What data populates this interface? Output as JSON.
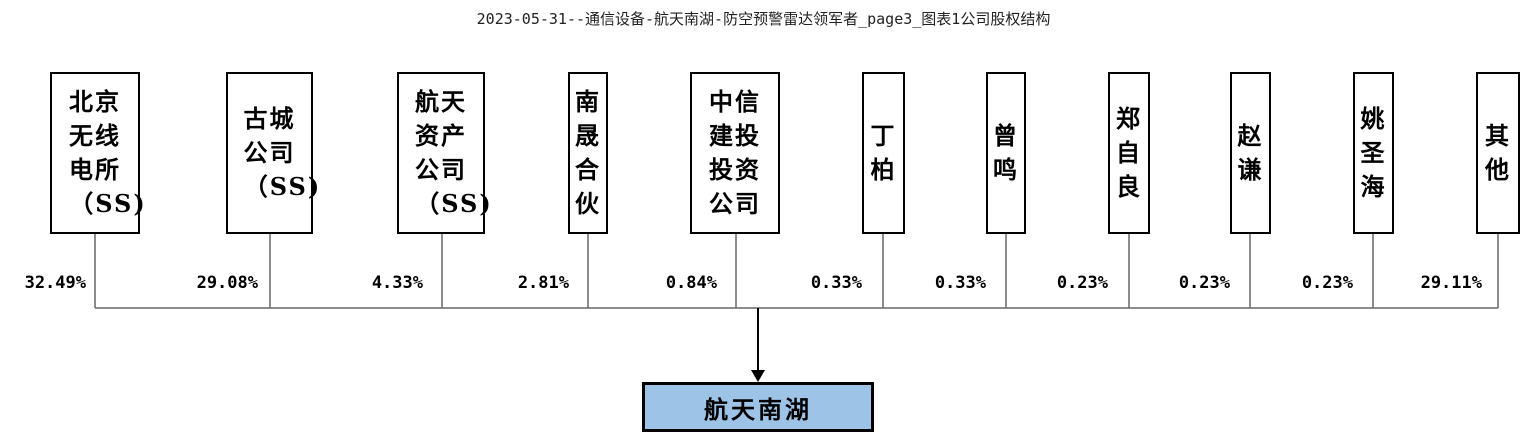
{
  "title": "2023-05-31--通信设备-航天南湖-防空预警雷达领军者_page3_图表1公司股权结构",
  "shareholders": [
    {
      "lines": [
        "北京",
        "无线",
        "电所",
        "（SS)"
      ],
      "pct": "32.49%"
    },
    {
      "lines": [
        "古城",
        "公司",
        "（SS)"
      ],
      "pct": "29.08%"
    },
    {
      "lines": [
        "航天",
        "资产",
        "公司",
        "（SS)"
      ],
      "pct": "4.33%"
    },
    {
      "lines": [
        "南",
        "晟",
        "合",
        "伙"
      ],
      "pct": "2.81%"
    },
    {
      "lines": [
        "中信",
        "建投",
        "投资",
        "公司"
      ],
      "pct": "0.84%"
    },
    {
      "lines": [
        "丁",
        "柏"
      ],
      "pct": "0.33%"
    },
    {
      "lines": [
        "曾",
        "鸣"
      ],
      "pct": "0.33%"
    },
    {
      "lines": [
        "郑",
        "自",
        "良"
      ],
      "pct": "0.23%"
    },
    {
      "lines": [
        "赵",
        "谦"
      ],
      "pct": "0.23%"
    },
    {
      "lines": [
        "姚",
        "圣",
        "海"
      ],
      "pct": "0.23%"
    },
    {
      "lines": [
        "其",
        "他"
      ],
      "pct": "29.11%"
    }
  ],
  "company": {
    "name": "航天南湖",
    "fill_color": "#9dc3e6"
  }
}
